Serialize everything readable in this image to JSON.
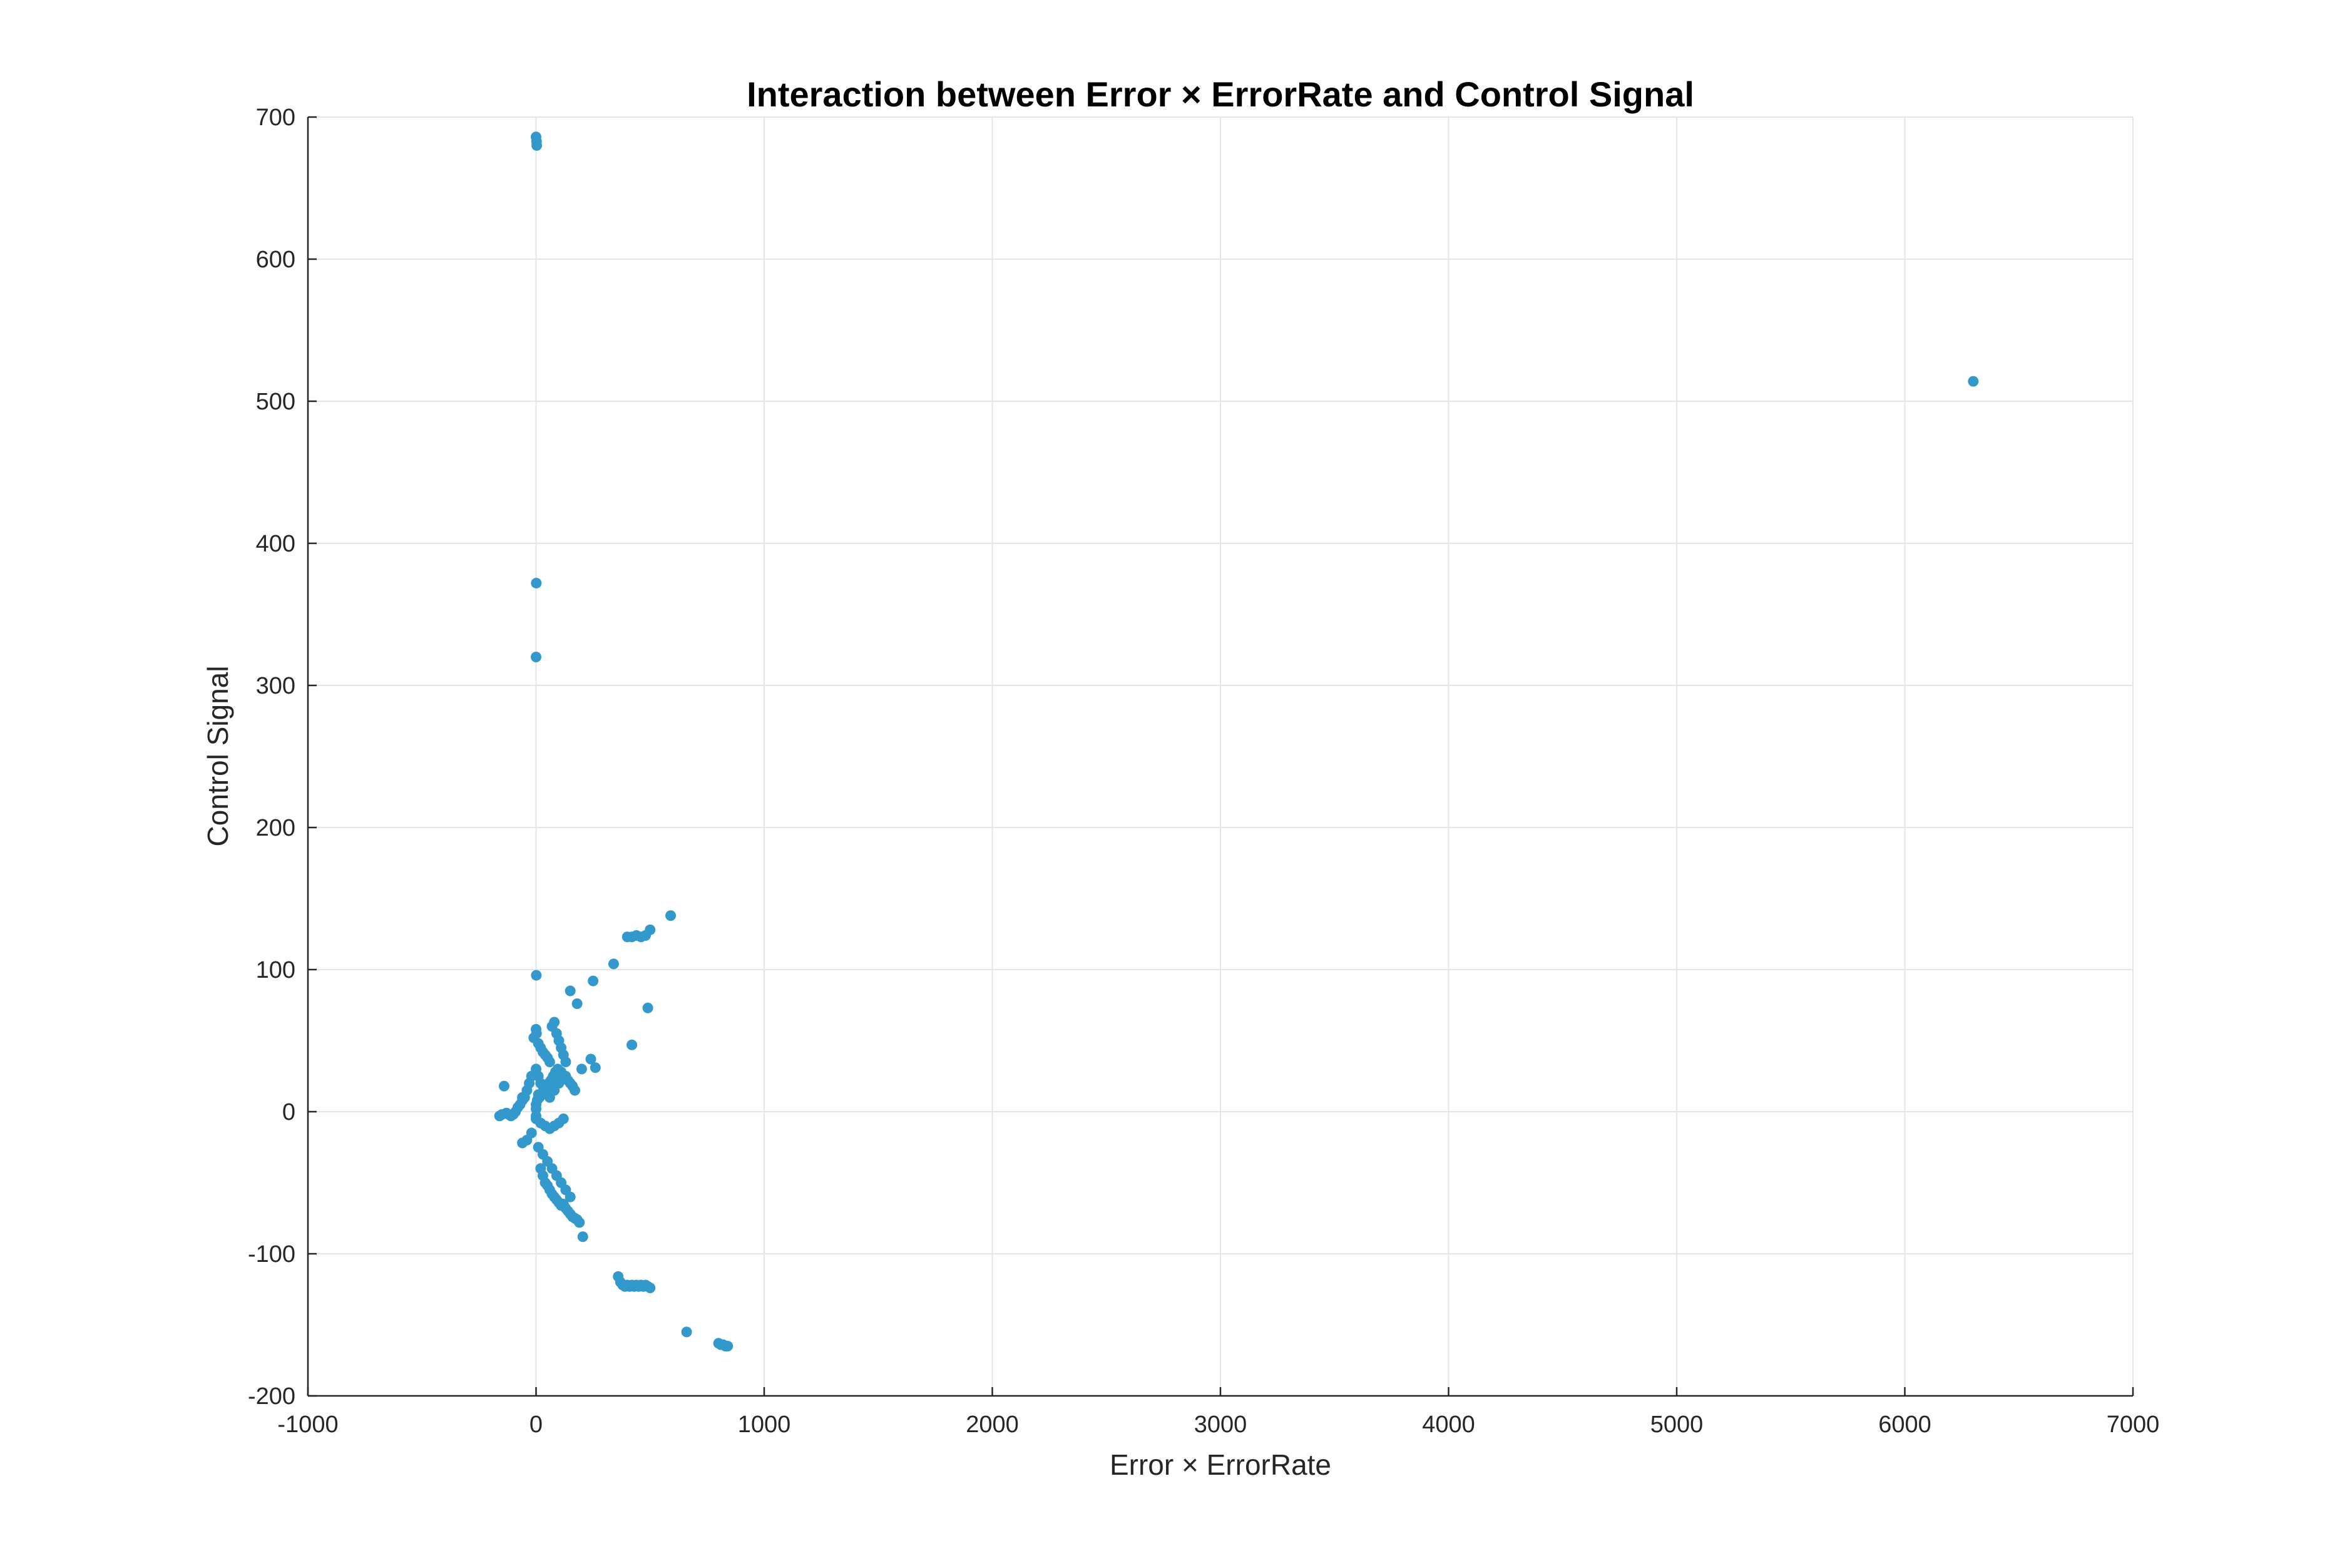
{
  "chart_data": {
    "type": "scatter",
    "title": "Interaction between Error × ErrorRate and Control Signal",
    "xlabel": "Error × ErrorRate",
    "ylabel": "Control Signal",
    "xlim": [
      -1000,
      7000
    ],
    "ylim": [
      -200,
      700
    ],
    "xticks": [
      "-1000",
      "0",
      "1000",
      "2000",
      "3000",
      "4000",
      "5000",
      "6000",
      "7000"
    ],
    "yticks": [
      "-200",
      "-100",
      "0",
      "100",
      "200",
      "300",
      "400",
      "500",
      "600",
      "700"
    ],
    "grid": true,
    "legend": "none",
    "color": "#3399cc",
    "series": [
      {
        "x": [
          0,
          2,
          3,
          1,
          0,
          1,
          2,
          6300,
          590,
          500,
          480,
          460,
          440,
          420,
          400,
          340,
          490,
          150,
          180,
          250,
          420,
          240,
          260,
          200,
          0,
          -10,
          10,
          20,
          30,
          40,
          50,
          60,
          70,
          80,
          90,
          100,
          110,
          120,
          130,
          -20,
          -30,
          -40,
          -50,
          -60,
          -70,
          -80,
          -90,
          -100,
          -110,
          -120,
          -130,
          -150,
          -160,
          -140,
          0,
          10,
          20,
          30,
          40,
          50,
          60,
          80,
          100,
          120,
          140,
          160,
          0,
          5,
          15,
          25,
          35,
          45,
          55,
          65,
          75,
          85,
          95,
          110,
          130,
          150,
          170,
          0,
          20,
          40,
          60,
          80,
          100,
          120,
          -20,
          -40,
          -60,
          10,
          30,
          50,
          70,
          90,
          110,
          130,
          150,
          20,
          30,
          40,
          50,
          60,
          70,
          80,
          90,
          100,
          110,
          120,
          130,
          140,
          150,
          160,
          170,
          180,
          190,
          205,
          360,
          370,
          380,
          390,
          400,
          410,
          420,
          430,
          440,
          450,
          460,
          470,
          480,
          490,
          500,
          660,
          800,
          810,
          820,
          830,
          840,
          0,
          0,
          10,
          -60
        ],
        "y": [
          686,
          683,
          680,
          372,
          320,
          96,
          55,
          514,
          138,
          128,
          124,
          123,
          124,
          123,
          123,
          104,
          73,
          85,
          76,
          92,
          47,
          37,
          31,
          30,
          58,
          52,
          48,
          45,
          42,
          40,
          38,
          35,
          60,
          63,
          55,
          50,
          45,
          40,
          35,
          25,
          20,
          15,
          10,
          8,
          5,
          3,
          0,
          -2,
          -3,
          -2,
          -1,
          -2,
          -3,
          18,
          30,
          25,
          20,
          18,
          15,
          12,
          10,
          15,
          20,
          25,
          22,
          18,
          5,
          8,
          10,
          12,
          15,
          18,
          20,
          22,
          25,
          28,
          30,
          28,
          25,
          20,
          15,
          -5,
          -8,
          -10,
          -12,
          -10,
          -8,
          -5,
          -15,
          -20,
          -22,
          -25,
          -30,
          -35,
          -40,
          -45,
          -50,
          -55,
          -60,
          -40,
          -45,
          -50,
          -52,
          -55,
          -58,
          -60,
          -62,
          -64,
          -66,
          -65,
          -68,
          -70,
          -72,
          -74,
          -75,
          -76,
          -78,
          -88,
          -116,
          -120,
          -122,
          -123,
          -122,
          -123,
          -122,
          -123,
          -122,
          -123,
          -122,
          -123,
          -122,
          -123,
          -124,
          -155,
          -163,
          -164,
          -164,
          -165,
          -165,
          2,
          -3,
          12,
          10
        ]
      }
    ]
  }
}
